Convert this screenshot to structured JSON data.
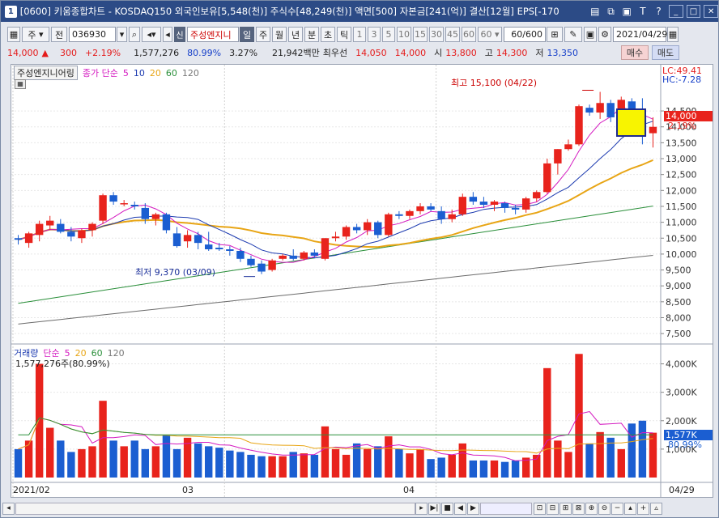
{
  "window": {
    "number": "1",
    "title": "[0600] 키움종합차트 - KOSDAQ150 외국인보유[5,548(천)] 주식수[48,249(천)] 액면[500] 자본금[241(억)] 결산[12월] EPS[-170"
  },
  "toolbar": {
    "period_select": "주",
    "prev_label": "전",
    "code": "036930",
    "credit_badge": "신",
    "stock_name": "주성엔지니",
    "period_tabs": [
      "일",
      "주",
      "월",
      "년",
      "분",
      "초",
      "틱"
    ],
    "active_period_tab": "일",
    "interval_buttons": [
      "1",
      "3",
      "5",
      "10",
      "15",
      "30",
      "45",
      "60"
    ],
    "interval_select": "60",
    "count": "60/600",
    "date": "2021/04/29"
  },
  "quote": {
    "price": "14,000",
    "change_arrow": "▲",
    "change": "300",
    "change_pct": "+2.19%",
    "volume": "1,577,276",
    "volume_ratio": "80.99%",
    "turnover": "3.27%",
    "amount": "21,942백만",
    "best_ask_label": "최우선",
    "best_ask": "14,050",
    "best_bid": "14,000",
    "open_label": "시",
    "open": "13,800",
    "high_label": "고",
    "high": "14,300",
    "low_label": "저",
    "low": "13,350",
    "buy_button": "매수",
    "sell_button": "매도"
  },
  "price_panel": {
    "stock_label": "주성엔지니어링",
    "legend_title": "종가 단순",
    "ma_periods": [
      "5",
      "10",
      "20",
      "60",
      "120"
    ],
    "lc": "LC:49.41",
    "hc": "HC:-7.28",
    "max_annotation": "최고 15,100 (04/22)",
    "min_annotation": "최저 9,370 (03/09)",
    "current_price": "14,000",
    "current_pct": "2.19%"
  },
  "volume_panel": {
    "legend_title": "거래량",
    "legend_sub": "단순",
    "ma_periods": [
      "5",
      "20",
      "60",
      "120"
    ],
    "volume_text": "1,577,276주(80.99%)",
    "current_label": "1,577K",
    "current_pct": "80.99%"
  },
  "x_axis": {
    "labels": [
      "2021/02",
      "03",
      "04"
    ],
    "right_label": "04/29"
  },
  "colors": {
    "up": "#e8231c",
    "down": "#1b5ed1",
    "ma5": "#d41ac0",
    "ma10": "#1d3bb0",
    "ma20": "#e8a515",
    "ma60": "#2a8f3a",
    "ma120": "#6b6b6b"
  },
  "chart_data": {
    "type": "candlestick",
    "price_ylim": [
      7300,
      15800
    ],
    "price_ticks": [
      7500,
      8000,
      8500,
      9000,
      9500,
      10000,
      10500,
      11000,
      11500,
      12000,
      12500,
      13000,
      13500,
      14000,
      14500
    ],
    "volume_ylim": [
      0,
      4500
    ],
    "volume_ticks": [
      "1,000K",
      "2,000K",
      "3,000K",
      "4,000K"
    ],
    "volume_tick_values": [
      1000,
      2000,
      3000,
      4000
    ],
    "dates": [
      "02/01",
      "02/02",
      "02/03",
      "02/04",
      "02/05",
      "02/08",
      "02/09",
      "02/10",
      "02/15",
      "02/16",
      "02/17",
      "02/18",
      "02/19",
      "02/22",
      "02/23",
      "02/24",
      "02/25",
      "02/26",
      "03/02",
      "03/03",
      "03/04",
      "03/05",
      "03/08",
      "03/09",
      "03/10",
      "03/11",
      "03/12",
      "03/15",
      "03/16",
      "03/17",
      "03/18",
      "03/19",
      "03/22",
      "03/23",
      "03/24",
      "03/25",
      "03/26",
      "03/29",
      "03/30",
      "03/31",
      "04/01",
      "04/02",
      "04/05",
      "04/06",
      "04/07",
      "04/08",
      "04/09",
      "04/12",
      "04/13",
      "04/14",
      "04/15",
      "04/16",
      "04/19",
      "04/20",
      "04/21",
      "04/22",
      "04/23",
      "04/26",
      "04/27",
      "04/28",
      "04/29"
    ],
    "ohlc": [
      [
        10500,
        10600,
        10300,
        10450
      ],
      [
        10350,
        10700,
        10200,
        10650
      ],
      [
        10600,
        11050,
        10400,
        10950
      ],
      [
        10900,
        11200,
        10750,
        11050
      ],
      [
        10950,
        11100,
        10650,
        10700
      ],
      [
        10700,
        10850,
        10400,
        10550
      ],
      [
        10500,
        10800,
        10350,
        10750
      ],
      [
        10750,
        11000,
        10550,
        10950
      ],
      [
        11050,
        11900,
        10950,
        11850
      ],
      [
        11850,
        11950,
        11550,
        11650
      ],
      [
        11600,
        11700,
        11500,
        11600
      ],
      [
        11550,
        11650,
        11400,
        11500
      ],
      [
        11450,
        11600,
        10950,
        11100
      ],
      [
        11100,
        11300,
        10900,
        11250
      ],
      [
        11250,
        11300,
        10650,
        10750
      ],
      [
        10650,
        10850,
        10200,
        10250
      ],
      [
        10400,
        10750,
        10200,
        10600
      ],
      [
        10600,
        10700,
        10150,
        10350
      ],
      [
        10300,
        10700,
        10100,
        10150
      ],
      [
        10200,
        10350,
        10100,
        10150
      ],
      [
        10150,
        10250,
        9950,
        10100
      ],
      [
        10100,
        10200,
        9750,
        9850
      ],
      [
        9850,
        9950,
        9600,
        9650
      ],
      [
        9700,
        9800,
        9370,
        9450
      ],
      [
        9500,
        9850,
        9450,
        9800
      ],
      [
        9850,
        10000,
        9800,
        9950
      ],
      [
        9950,
        10150,
        9800,
        9850
      ],
      [
        9850,
        10100,
        9800,
        10050
      ],
      [
        10050,
        10150,
        9900,
        9950
      ],
      [
        9850,
        10500,
        9800,
        10500
      ],
      [
        10500,
        10700,
        10400,
        10550
      ],
      [
        10550,
        10900,
        10450,
        10850
      ],
      [
        10850,
        10950,
        10650,
        10750
      ],
      [
        10750,
        11100,
        10600,
        11000
      ],
      [
        11000,
        11050,
        10500,
        10600
      ],
      [
        10600,
        11300,
        10550,
        11250
      ],
      [
        11250,
        11350,
        11100,
        11200
      ],
      [
        11200,
        11400,
        11100,
        11350
      ],
      [
        11350,
        11600,
        11250,
        11500
      ],
      [
        11500,
        11600,
        11350,
        11400
      ],
      [
        11350,
        11500,
        10950,
        11100
      ],
      [
        11100,
        11400,
        11000,
        11250
      ],
      [
        11250,
        11900,
        11200,
        11800
      ],
      [
        11800,
        11950,
        11550,
        11650
      ],
      [
        11650,
        11800,
        11450,
        11550
      ],
      [
        11550,
        11700,
        11350,
        11650
      ],
      [
        11600,
        11650,
        11300,
        11450
      ],
      [
        11450,
        11550,
        11250,
        11400
      ],
      [
        11400,
        11800,
        11300,
        11750
      ],
      [
        11750,
        12000,
        11650,
        11950
      ],
      [
        11950,
        13000,
        11900,
        12850
      ],
      [
        12850,
        13300,
        12500,
        13300
      ],
      [
        13300,
        13600,
        13250,
        13450
      ],
      [
        13450,
        14700,
        13400,
        14650
      ],
      [
        14600,
        14700,
        14350,
        14450
      ],
      [
        14450,
        15100,
        14250,
        14750
      ],
      [
        14750,
        14850,
        14150,
        14300
      ],
      [
        14350,
        14950,
        14200,
        14850
      ],
      [
        14800,
        14900,
        14200,
        14350
      ],
      [
        14350,
        14900,
        13450,
        13700
      ],
      [
        13800,
        14300,
        13350,
        14000
      ]
    ],
    "volume_k": [
      1000,
      1300,
      4000,
      1750,
      1300,
      900,
      1000,
      1100,
      2700,
      1300,
      1100,
      1300,
      1000,
      1100,
      1500,
      1000,
      1400,
      1200,
      1100,
      1050,
      950,
      900,
      800,
      750,
      750,
      750,
      900,
      850,
      800,
      1800,
      1000,
      800,
      1200,
      1000,
      1100,
      1450,
      1000,
      850,
      1000,
      650,
      700,
      800,
      1200,
      600,
      600,
      600,
      550,
      600,
      700,
      800,
      3850,
      1300,
      900,
      4350,
      1200,
      1600,
      1400,
      1000,
      1900,
      2000,
      1577
    ]
  }
}
